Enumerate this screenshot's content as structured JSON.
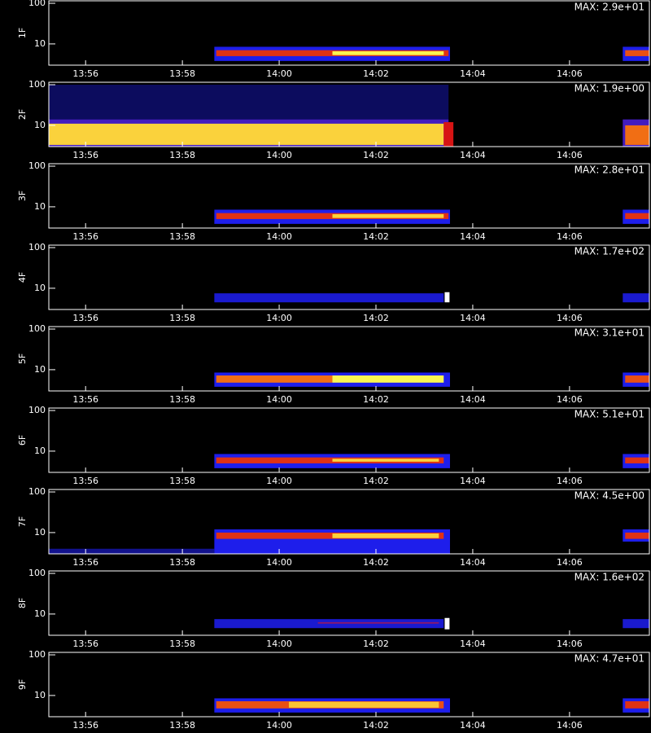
{
  "chart_data": [
    {
      "type": "spectrogram",
      "ylabel": "1F",
      "max_label": "MAX: 2.9e+01",
      "log_y": true,
      "ylim": [
        3,
        115
      ],
      "yticks": [
        10,
        100
      ],
      "xlim": [
        835.24,
        847.65
      ],
      "xticks": [
        {
          "value": 836,
          "label": "13:56"
        },
        {
          "value": 838,
          "label": "13:58"
        },
        {
          "value": 840,
          "label": "14:00"
        },
        {
          "value": 842,
          "label": "14:02"
        },
        {
          "value": 844,
          "label": "14:04"
        },
        {
          "value": 846,
          "label": "14:06"
        }
      ],
      "cells": [
        {
          "x": [
            838.66,
            843.53
          ],
          "y": [
            3.8,
            8.5
          ],
          "level": 0.25
        },
        {
          "x": [
            838.7,
            843.5
          ],
          "y": [
            5,
            7
          ],
          "level": 0.55
        },
        {
          "x": [
            841.1,
            843.4
          ],
          "y": [
            5.3,
            6.6
          ],
          "level": 0.85
        },
        {
          "x": [
            847.1,
            847.65
          ],
          "y": [
            3.8,
            8.5
          ],
          "level": 0.25
        },
        {
          "x": [
            847.15,
            847.65
          ],
          "y": [
            5,
            7
          ],
          "level": 0.6
        }
      ]
    },
    {
      "type": "spectrogram",
      "ylabel": "2F",
      "max_label": "MAX: 1.9e+00",
      "log_y": true,
      "ylim": [
        3,
        115
      ],
      "yticks": [
        10,
        100
      ],
      "xlim": [
        835.24,
        847.65
      ],
      "xticks": [
        {
          "value": 836,
          "label": "13:56"
        },
        {
          "value": 838,
          "label": "13:58"
        },
        {
          "value": 840,
          "label": "14:00"
        },
        {
          "value": 842,
          "label": "14:02"
        },
        {
          "value": 844,
          "label": "14:04"
        },
        {
          "value": 846,
          "label": "14:06"
        }
      ],
      "cells": [
        {
          "x": [
            835.24,
            843.5
          ],
          "y": [
            14,
            100
          ],
          "level": 0.1
        },
        {
          "x": [
            835.24,
            843.5
          ],
          "y": [
            3,
            14
          ],
          "level": 0.3
        },
        {
          "x": [
            835.24,
            843.4
          ],
          "y": [
            3.3,
            11
          ],
          "level": 0.8
        },
        {
          "x": [
            843.4,
            843.6
          ],
          "y": [
            3,
            12
          ],
          "level": 0.5
        },
        {
          "x": [
            847.1,
            847.65
          ],
          "y": [
            3,
            14
          ],
          "level": 0.3
        },
        {
          "x": [
            847.15,
            847.65
          ],
          "y": [
            3.3,
            10
          ],
          "level": 0.65
        }
      ]
    },
    {
      "type": "spectrogram",
      "ylabel": "3F",
      "max_label": "MAX: 2.8e+01",
      "log_y": true,
      "ylim": [
        3,
        115
      ],
      "yticks": [
        10,
        100
      ],
      "xlim": [
        835.24,
        847.65
      ],
      "xticks": [
        {
          "value": 836,
          "label": "13:56"
        },
        {
          "value": 838,
          "label": "13:58"
        },
        {
          "value": 840,
          "label": "14:00"
        },
        {
          "value": 842,
          "label": "14:02"
        },
        {
          "value": 844,
          "label": "14:04"
        },
        {
          "value": 846,
          "label": "14:06"
        }
      ],
      "cells": [
        {
          "x": [
            838.66,
            843.53
          ],
          "y": [
            3.8,
            8.5
          ],
          "level": 0.25
        },
        {
          "x": [
            838.7,
            843.5
          ],
          "y": [
            5,
            7
          ],
          "level": 0.55
        },
        {
          "x": [
            841.1,
            843.4
          ],
          "y": [
            5.3,
            6.6
          ],
          "level": 0.8
        },
        {
          "x": [
            847.1,
            847.65
          ],
          "y": [
            3.8,
            8.5
          ],
          "level": 0.25
        },
        {
          "x": [
            847.15,
            847.65
          ],
          "y": [
            5,
            7
          ],
          "level": 0.55
        }
      ]
    },
    {
      "type": "spectrogram",
      "ylabel": "4F",
      "max_label": "MAX: 1.7e+02",
      "log_y": true,
      "ylim": [
        3,
        115
      ],
      "yticks": [
        10,
        100
      ],
      "xlim": [
        835.24,
        847.65
      ],
      "xticks": [
        {
          "value": 836,
          "label": "13:56"
        },
        {
          "value": 838,
          "label": "13:58"
        },
        {
          "value": 840,
          "label": "14:00"
        },
        {
          "value": 842,
          "label": "14:02"
        },
        {
          "value": 844,
          "label": "14:04"
        },
        {
          "value": 846,
          "label": "14:06"
        }
      ],
      "cells": [
        {
          "x": [
            838.66,
            843.4
          ],
          "y": [
            4.5,
            7.5
          ],
          "level": 0.22
        },
        {
          "x": [
            843.42,
            843.52
          ],
          "y": [
            4.5,
            8
          ],
          "level": 1
        },
        {
          "x": [
            847.1,
            847.65
          ],
          "y": [
            4.5,
            7.5
          ],
          "level": 0.22
        }
      ]
    },
    {
      "type": "spectrogram",
      "ylabel": "5F",
      "max_label": "MAX: 3.1e+01",
      "log_y": true,
      "ylim": [
        3,
        115
      ],
      "yticks": [
        10,
        100
      ],
      "xlim": [
        835.24,
        847.65
      ],
      "xticks": [
        {
          "value": 836,
          "label": "13:56"
        },
        {
          "value": 838,
          "label": "13:58"
        },
        {
          "value": 840,
          "label": "14:00"
        },
        {
          "value": 842,
          "label": "14:02"
        },
        {
          "value": 844,
          "label": "14:04"
        },
        {
          "value": 846,
          "label": "14:06"
        }
      ],
      "cells": [
        {
          "x": [
            838.66,
            843.53
          ],
          "y": [
            3.8,
            8.5
          ],
          "level": 0.25
        },
        {
          "x": [
            838.7,
            841.1
          ],
          "y": [
            4.8,
            7.2
          ],
          "level": 0.65
        },
        {
          "x": [
            841.1,
            843.4
          ],
          "y": [
            4.8,
            7.2
          ],
          "level": 0.85
        },
        {
          "x": [
            847.1,
            847.65
          ],
          "y": [
            3.8,
            8.5
          ],
          "level": 0.25
        },
        {
          "x": [
            847.15,
            847.65
          ],
          "y": [
            4.8,
            7.2
          ],
          "level": 0.6
        }
      ]
    },
    {
      "type": "spectrogram",
      "ylabel": "6F",
      "max_label": "MAX: 5.1e+01",
      "log_y": true,
      "ylim": [
        3,
        115
      ],
      "yticks": [
        10,
        100
      ],
      "xlim": [
        835.24,
        847.65
      ],
      "xticks": [
        {
          "value": 836,
          "label": "13:56"
        },
        {
          "value": 838,
          "label": "13:58"
        },
        {
          "value": 840,
          "label": "14:00"
        },
        {
          "value": 842,
          "label": "14:02"
        },
        {
          "value": 844,
          "label": "14:04"
        },
        {
          "value": 846,
          "label": "14:06"
        }
      ],
      "cells": [
        {
          "x": [
            838.66,
            843.53
          ],
          "y": [
            3.8,
            8.5
          ],
          "level": 0.25
        },
        {
          "x": [
            838.7,
            843.4
          ],
          "y": [
            5,
            7
          ],
          "level": 0.55
        },
        {
          "x": [
            841.1,
            843.3
          ],
          "y": [
            5.5,
            6.5
          ],
          "level": 0.8
        },
        {
          "x": [
            847.1,
            847.65
          ],
          "y": [
            3.8,
            8.5
          ],
          "level": 0.25
        },
        {
          "x": [
            847.15,
            847.65
          ],
          "y": [
            5,
            7
          ],
          "level": 0.55
        }
      ]
    },
    {
      "type": "spectrogram",
      "ylabel": "7F",
      "max_label": "MAX: 4.5e+00",
      "log_y": true,
      "ylim": [
        3,
        115
      ],
      "yticks": [
        10,
        100
      ],
      "xlim": [
        835.24,
        847.65
      ],
      "xticks": [
        {
          "value": 836,
          "label": "13:56"
        },
        {
          "value": 838,
          "label": "13:58"
        },
        {
          "value": 840,
          "label": "14:00"
        },
        {
          "value": 842,
          "label": "14:02"
        },
        {
          "value": 844,
          "label": "14:04"
        },
        {
          "value": 846,
          "label": "14:06"
        }
      ],
      "cells": [
        {
          "x": [
            835.24,
            838.66
          ],
          "y": [
            3,
            4
          ],
          "level": 0.15
        },
        {
          "x": [
            838.66,
            843.53
          ],
          "y": [
            3,
            12
          ],
          "level": 0.25
        },
        {
          "x": [
            838.7,
            843.4
          ],
          "y": [
            7,
            10
          ],
          "level": 0.55
        },
        {
          "x": [
            841.1,
            843.3
          ],
          "y": [
            7.3,
            9.5
          ],
          "level": 0.8
        },
        {
          "x": [
            847.1,
            847.65
          ],
          "y": [
            6,
            12
          ],
          "level": 0.25
        },
        {
          "x": [
            847.15,
            847.65
          ],
          "y": [
            7,
            10
          ],
          "level": 0.55
        }
      ]
    },
    {
      "type": "spectrogram",
      "ylabel": "8F",
      "max_label": "MAX: 1.6e+02",
      "log_y": true,
      "ylim": [
        3,
        115
      ],
      "yticks": [
        10,
        100
      ],
      "xlim": [
        835.24,
        847.65
      ],
      "xticks": [
        {
          "value": 836,
          "label": "13:56"
        },
        {
          "value": 838,
          "label": "13:58"
        },
        {
          "value": 840,
          "label": "14:00"
        },
        {
          "value": 842,
          "label": "14:02"
        },
        {
          "value": 844,
          "label": "14:04"
        },
        {
          "value": 846,
          "label": "14:06"
        }
      ],
      "cells": [
        {
          "x": [
            838.66,
            843.4
          ],
          "y": [
            4.5,
            7.5
          ],
          "level": 0.22
        },
        {
          "x": [
            840.8,
            843.3
          ],
          "y": [
            5.8,
            6.3
          ],
          "level": 0.4
        },
        {
          "x": [
            843.42,
            843.52
          ],
          "y": [
            4.2,
            8
          ],
          "level": 1
        },
        {
          "x": [
            847.1,
            847.65
          ],
          "y": [
            4.5,
            7.5
          ],
          "level": 0.22
        }
      ]
    },
    {
      "type": "spectrogram",
      "ylabel": "9F",
      "max_label": "MAX: 4.7e+01",
      "log_y": true,
      "ylim": [
        3,
        115
      ],
      "yticks": [
        10,
        100
      ],
      "xlim": [
        835.24,
        847.65
      ],
      "xticks": [
        {
          "value": 836,
          "label": "13:56"
        },
        {
          "value": 838,
          "label": "13:58"
        },
        {
          "value": 840,
          "label": "14:00"
        },
        {
          "value": 842,
          "label": "14:02"
        },
        {
          "value": 844,
          "label": "14:04"
        },
        {
          "value": 846,
          "label": "14:06"
        }
      ],
      "cells": [
        {
          "x": [
            838.66,
            843.53
          ],
          "y": [
            3.8,
            8.5
          ],
          "level": 0.25
        },
        {
          "x": [
            838.7,
            843.4
          ],
          "y": [
            4.8,
            7.2
          ],
          "level": 0.6
        },
        {
          "x": [
            840.2,
            843.3
          ],
          "y": [
            5,
            7
          ],
          "level": 0.78
        },
        {
          "x": [
            847.1,
            847.65
          ],
          "y": [
            3.8,
            8.5
          ],
          "level": 0.25
        },
        {
          "x": [
            847.15,
            847.65
          ],
          "y": [
            4.8,
            7.2
          ],
          "level": 0.55
        }
      ]
    }
  ]
}
